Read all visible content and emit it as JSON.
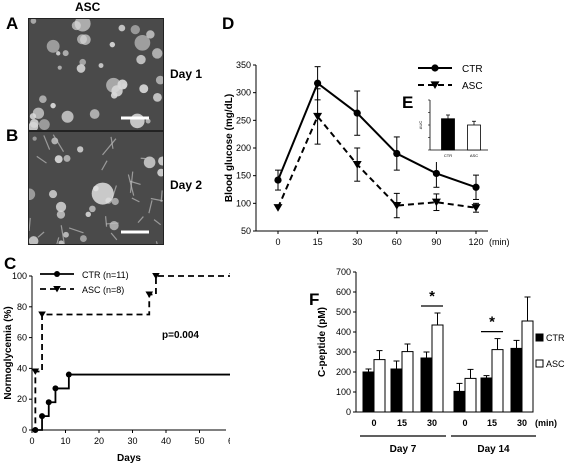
{
  "panels": {
    "A": "A",
    "B": "B",
    "C": "C",
    "D": "D",
    "E": "E",
    "F": "F"
  },
  "micrographs": {
    "header": "ASC",
    "day1": "Day 1",
    "day2": "Day 2"
  },
  "colors": {
    "ink": "#000000",
    "micro_bg": "#4a4a4a",
    "micro_cells": "#d8d8d8",
    "ctr_bar": "#000000",
    "asc_bar": "#ffffff"
  },
  "chart_data": [
    {
      "id": "C",
      "type": "line",
      "subtype": "step",
      "ylabel": "Normoglycemia (%)",
      "xlabel": "Days",
      "xlim": [
        0,
        60
      ],
      "ylim": [
        0,
        100
      ],
      "xticks": [
        "0",
        "10",
        "20",
        "30",
        "40",
        "50",
        "60"
      ],
      "yticks": [
        "0",
        "20",
        "40",
        "60",
        "80",
        "100"
      ],
      "annotation": "p=0.004",
      "legend_position": "top-left",
      "series": [
        {
          "name": "CTR (n=11)",
          "style": "solid",
          "marker": "circle",
          "x": [
            0,
            1,
            3,
            5,
            7,
            11,
            60
          ],
          "y": [
            0,
            0,
            9,
            18,
            27,
            36,
            36
          ]
        },
        {
          "name": "ASC (n=8)",
          "style": "dashed",
          "marker": "triangle-down",
          "x": [
            0,
            1,
            3,
            35,
            37,
            60
          ],
          "y": [
            0,
            38,
            75,
            88,
            100,
            100
          ]
        }
      ]
    },
    {
      "id": "D",
      "type": "line",
      "ylabel": "Blood glucose (mg/dL)",
      "xlabel": "",
      "x_unit": "(min)",
      "categories": [
        "0",
        "15",
        "30",
        "60",
        "90",
        "120"
      ],
      "ylim": [
        50,
        350
      ],
      "yticks": [
        "50",
        "100",
        "150",
        "200",
        "250",
        "300",
        "350"
      ],
      "legend_position": "top-right",
      "series": [
        {
          "name": "CTR",
          "style": "solid",
          "marker": "circle",
          "values": [
            142,
            317,
            263,
            190,
            154,
            129
          ],
          "errors": [
            18,
            30,
            40,
            30,
            25,
            22
          ]
        },
        {
          "name": "ASC",
          "style": "dashed",
          "marker": "triangle-down",
          "values": [
            92,
            257,
            170,
            96,
            102,
            92
          ],
          "errors": [
            0,
            50,
            30,
            22,
            15,
            8
          ]
        }
      ]
    },
    {
      "id": "E",
      "type": "bar",
      "inset": true,
      "ylabel": "AUC",
      "categories": [
        "CTR",
        "ASC"
      ],
      "values": [
        1.0,
        0.8
      ],
      "errors": [
        0.12,
        0.12
      ],
      "ylim": [
        0,
        1.6
      ],
      "yticks": [
        "",
        "",
        "",
        "",
        ""
      ]
    },
    {
      "id": "F",
      "type": "bar",
      "ylabel": "C-peptide (pM)",
      "categories": [
        "0",
        "15",
        "30",
        "0",
        "15",
        "30"
      ],
      "x_unit": "(min)",
      "groups": [
        "Day 7",
        "Day 14"
      ],
      "ylim": [
        0,
        700
      ],
      "yticks": [
        "0",
        "100",
        "200",
        "300",
        "400",
        "500",
        "600",
        "700"
      ],
      "legend_position": "right",
      "series": [
        {
          "name": "CTR",
          "color": "#000000",
          "values": [
            200,
            215,
            270,
            103,
            170,
            318
          ],
          "errors": [
            15,
            40,
            30,
            40,
            12,
            40
          ]
        },
        {
          "name": "ASC",
          "color": "#ffffff",
          "values": [
            262,
            302,
            435,
            168,
            312,
            455
          ],
          "errors": [
            45,
            38,
            60,
            45,
            55,
            120
          ]
        }
      ],
      "significance": [
        {
          "category": 2,
          "label": "*"
        },
        {
          "category": 4,
          "label": "*"
        }
      ]
    }
  ]
}
